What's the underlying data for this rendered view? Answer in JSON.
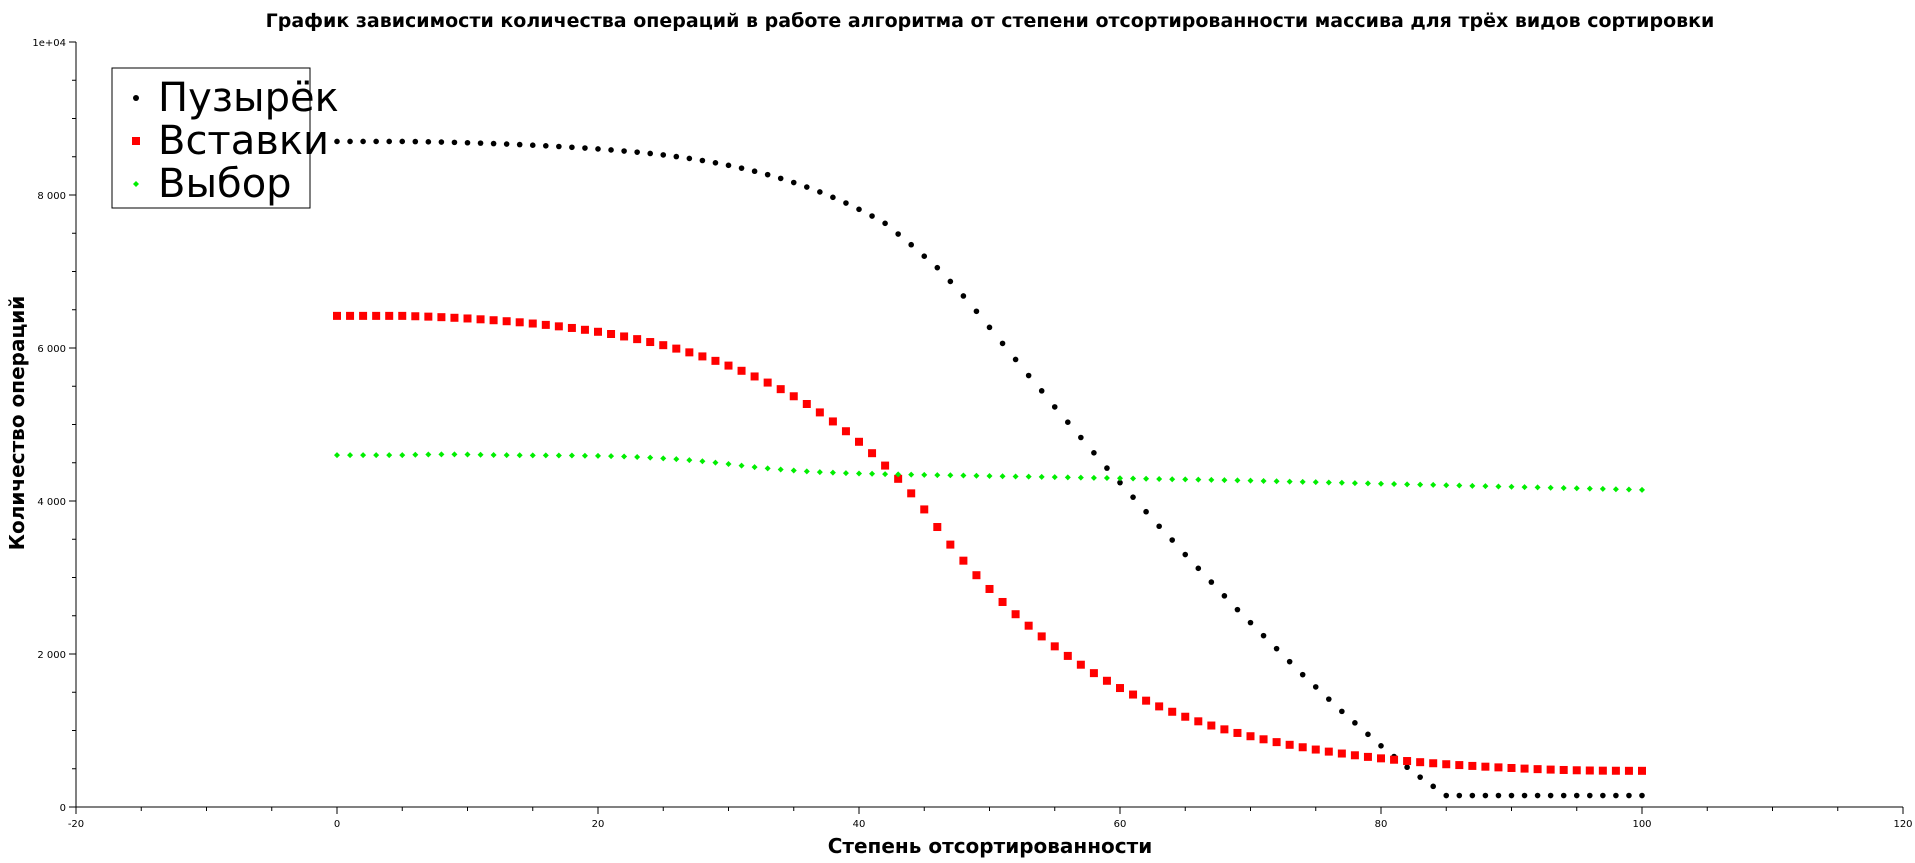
{
  "chart_data": {
    "type": "scatter",
    "title": "График зависимости количества операций в работе алгоритма от степени отсортированности массива для трёх видов сортировки",
    "xlabel": "Степень отсортированности",
    "ylabel": "Количество операций",
    "xlim": [
      -20,
      120
    ],
    "ylim": [
      0,
      10000
    ],
    "x_ticks": [
      -20,
      0,
      20,
      40,
      60,
      80,
      100,
      120
    ],
    "x_tick_labels": [
      "-20",
      "0",
      "20",
      "40",
      "60",
      "80",
      "100",
      "120"
    ],
    "y_ticks": [
      0,
      2000,
      4000,
      6000,
      8000,
      10000
    ],
    "y_tick_labels": [
      "0",
      "2 000",
      "4 000",
      "6 000",
      "8 000",
      "1e+04"
    ],
    "legend_position": "top-left",
    "x": [
      0,
      1,
      2,
      3,
      4,
      5,
      6,
      7,
      8,
      9,
      10,
      11,
      12,
      13,
      14,
      15,
      16,
      17,
      18,
      19,
      20,
      21,
      22,
      23,
      24,
      25,
      26,
      27,
      28,
      29,
      30,
      31,
      32,
      33,
      34,
      35,
      36,
      37,
      38,
      39,
      40,
      41,
      42,
      43,
      44,
      45,
      46,
      47,
      48,
      49,
      50,
      51,
      52,
      53,
      54,
      55,
      56,
      57,
      58,
      59,
      60,
      61,
      62,
      63,
      64,
      65,
      66,
      67,
      68,
      69,
      70,
      71,
      72,
      73,
      74,
      75,
      76,
      77,
      78,
      79,
      80,
      81,
      82,
      83,
      84,
      85,
      86,
      87,
      88,
      89,
      90,
      91,
      92,
      93,
      94,
      95,
      96,
      97,
      98,
      99,
      100
    ],
    "series": [
      {
        "name": "Пузырёк",
        "marker": "circle",
        "color": "#000000",
        "values": [
          8700,
          8700,
          8700,
          8700,
          8700,
          8700,
          8698,
          8695,
          8692,
          8688,
          8683,
          8678,
          8672,
          8666,
          8659,
          8651,
          8643,
          8634,
          8624,
          8614,
          8602,
          8589,
          8575,
          8560,
          8543,
          8524,
          8502,
          8478,
          8451,
          8421,
          8388,
          8351,
          8311,
          8266,
          8217,
          8163,
          8104,
          8040,
          7970,
          7895,
          7813,
          7725,
          7630,
          7490,
          7350,
          7200,
          7050,
          6870,
          6680,
          6480,
          6270,
          6060,
          5850,
          5640,
          5440,
          5230,
          5030,
          4830,
          4630,
          4430,
          4240,
          4050,
          3860,
          3670,
          3490,
          3300,
          3120,
          2940,
          2760,
          2580,
          2410,
          2240,
          2070,
          1900,
          1730,
          1570,
          1410,
          1250,
          1100,
          950,
          800,
          660,
          520,
          390,
          270,
          150,
          150,
          150,
          150,
          150,
          150,
          150,
          150,
          150,
          150,
          150,
          150,
          150,
          150,
          150,
          150
        ]
      },
      {
        "name": "Вставки",
        "marker": "square",
        "color": "#ff0000",
        "values": [
          6420,
          6420,
          6420,
          6420,
          6420,
          6420,
          6415,
          6410,
          6403,
          6395,
          6386,
          6375,
          6363,
          6350,
          6336,
          6320,
          6302,
          6283,
          6262,
          6238,
          6212,
          6183,
          6151,
          6116,
          6078,
          6037,
          5992,
          5943,
          5890,
          5832,
          5770,
          5702,
          5628,
          5548,
          5462,
          5369,
          5268,
          5158,
          5040,
          4912,
          4774,
          4625,
          4463,
          4290,
          4100,
          3890,
          3660,
          3430,
          3220,
          3030,
          2850,
          2680,
          2520,
          2370,
          2230,
          2100,
          1975,
          1860,
          1750,
          1650,
          1555,
          1470,
          1390,
          1315,
          1245,
          1180,
          1120,
          1065,
          1015,
          968,
          925,
          885,
          848,
          813,
          781,
          751,
          724,
          699,
          676,
          655,
          636,
          618,
          601,
          586,
          572,
          559,
          548,
          537,
          527,
          518,
          510,
          502,
          495,
          489,
          484,
          480,
          477,
          475,
          474,
          473,
          473
        ]
      },
      {
        "name": "Выбор",
        "marker": "diamond",
        "color": "#00ee00",
        "values": [
          4600,
          4600,
          4600,
          4600,
          4600,
          4600,
          4605,
          4608,
          4610,
          4610,
          4608,
          4605,
          4602,
          4600,
          4598,
          4597,
          4596,
          4595,
          4594,
          4592,
          4590,
          4586,
          4581,
          4575,
          4567,
          4558,
          4547,
          4534,
          4519,
          4502,
          4483,
          4462,
          4443,
          4426,
          4411,
          4398,
          4387,
          4378,
          4371,
          4365,
          4360,
          4356,
          4352,
          4348,
          4345,
          4342,
          4339,
          4336,
          4333,
          4330,
          4327,
          4324,
          4321,
          4318,
          4315,
          4312,
          4309,
          4306,
          4303,
          4300,
          4297,
          4294,
          4291,
          4288,
          4285,
          4282,
          4279,
          4276,
          4273,
          4270,
          4266,
          4262,
          4258,
          4254,
          4250,
          4246,
          4242,
          4238,
          4234,
          4230,
          4226,
          4222,
          4218,
          4214,
          4210,
          4206,
          4202,
          4198,
          4194,
          4190,
          4186,
          4182,
          4178,
          4174,
          4170,
          4166,
          4162,
          4158,
          4154,
          4150,
          4146
        ]
      }
    ]
  }
}
